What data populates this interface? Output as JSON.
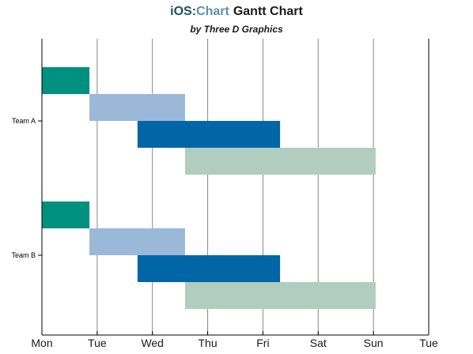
{
  "title": {
    "part1": "iOS:",
    "part2": "Chart",
    "part3": "Gantt Chart"
  },
  "subtitle": "by Three D Graphics",
  "colors": {
    "grid": "#888888",
    "axis": "#000000",
    "background": "#ffffff"
  },
  "chart_data": {
    "type": "gantt",
    "title": "iOS:Chart Gantt Chart",
    "subtitle": "by Three D Graphics",
    "x_ticks": [
      "Mon",
      "Tue",
      "Wed",
      "Thu",
      "Fri",
      "Sat",
      "Sun",
      "Tue"
    ],
    "x_range_days": [
      0,
      7
    ],
    "grid": "vertical",
    "categories": [
      "Team A",
      "Team B"
    ],
    "tasks": [
      {
        "category": "Team A",
        "start": 0.0,
        "end": 0.86,
        "color": "#009080"
      },
      {
        "category": "Team A",
        "start": 0.86,
        "end": 2.59,
        "color": "#9cb8d8"
      },
      {
        "category": "Team A",
        "start": 1.73,
        "end": 4.31,
        "color": "#0066a6"
      },
      {
        "category": "Team A",
        "start": 2.59,
        "end": 6.04,
        "color": "#b0cdc0"
      },
      {
        "category": "Team B",
        "start": 0.0,
        "end": 0.86,
        "color": "#009080"
      },
      {
        "category": "Team B",
        "start": 0.86,
        "end": 2.59,
        "color": "#9cb8d8"
      },
      {
        "category": "Team B",
        "start": 1.73,
        "end": 4.31,
        "color": "#0066a6"
      },
      {
        "category": "Team B",
        "start": 2.59,
        "end": 6.04,
        "color": "#b0cdc0"
      }
    ]
  }
}
